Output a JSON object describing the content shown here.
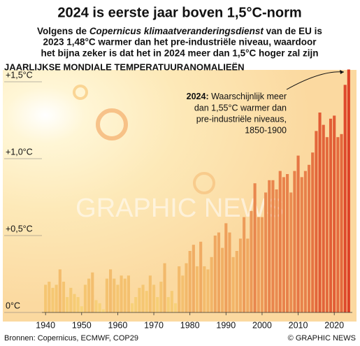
{
  "chart_data": {
    "type": "bar",
    "title": "2024 is eerste jaar boven 1,5°C-norm",
    "subtitle": [
      "Volgens de ",
      "Copernicus klimaatveranderingsdienst",
      " van de EU is",
      "2023 1,48°C warmer dan het pre-industriële niveau, waardoor",
      "het bijna zeker is dat het in 2024 meer dan 1,5°C hoger zal zijn"
    ],
    "y_label": "JAARLIJKSE MONDIALE TEMPERATUURANOMALIEËN",
    "annotation": [
      "2024:",
      " Waarschijnlijk meer",
      "dan 1,55°C warmer dan",
      "pre-industriële niveaus,",
      "1850-1900"
    ],
    "source": "Bronnen: Copernicus, ECMWF, COP29",
    "credit": "© GRAPHIC NEWS",
    "watermark": "GRAPHIC NEWS",
    "x": [
      1940,
      1941,
      1942,
      1943,
      1944,
      1945,
      1946,
      1947,
      1948,
      1949,
      1950,
      1951,
      1952,
      1953,
      1954,
      1955,
      1956,
      1957,
      1958,
      1959,
      1960,
      1961,
      1962,
      1963,
      1964,
      1965,
      1966,
      1967,
      1968,
      1969,
      1970,
      1971,
      1972,
      1973,
      1974,
      1975,
      1976,
      1977,
      1978,
      1979,
      1980,
      1981,
      1982,
      1983,
      1984,
      1985,
      1986,
      1987,
      1988,
      1989,
      1990,
      1991,
      1992,
      1993,
      1994,
      1995,
      1996,
      1997,
      1998,
      1999,
      2000,
      2001,
      2002,
      2003,
      2004,
      2005,
      2006,
      2007,
      2008,
      2009,
      2010,
      2011,
      2012,
      2013,
      2014,
      2015,
      2016,
      2017,
      2018,
      2019,
      2020,
      2021,
      2022,
      2023,
      2024
    ],
    "values": [
      0.18,
      0.2,
      0.16,
      0.18,
      0.28,
      0.2,
      0.1,
      0.16,
      0.12,
      0.1,
      0.04,
      0.18,
      0.22,
      0.26,
      0.08,
      0.06,
      0.02,
      0.22,
      0.28,
      0.22,
      0.18,
      0.24,
      0.22,
      0.24,
      0.06,
      0.1,
      0.16,
      0.18,
      0.14,
      0.24,
      0.18,
      0.1,
      0.2,
      0.32,
      0.1,
      0.14,
      0.06,
      0.3,
      0.24,
      0.32,
      0.4,
      0.44,
      0.3,
      0.46,
      0.3,
      0.28,
      0.36,
      0.5,
      0.52,
      0.42,
      0.58,
      0.52,
      0.36,
      0.4,
      0.48,
      0.62,
      0.48,
      0.66,
      0.84,
      0.62,
      0.62,
      0.78,
      0.86,
      0.86,
      0.8,
      0.92,
      0.88,
      0.9,
      0.78,
      0.92,
      1.02,
      0.88,
      0.92,
      0.96,
      1.04,
      1.18,
      1.3,
      1.22,
      1.14,
      1.26,
      1.28,
      1.14,
      1.16,
      1.48,
      1.58
    ],
    "colors": [
      "#f8d77c",
      "#dc3f25"
    ],
    "xlim": [
      1939,
      2025
    ],
    "xticks": [
      1940,
      1950,
      1960,
      1970,
      1980,
      1990,
      2000,
      2010,
      2020
    ],
    "ylim": [
      0,
      1.6
    ],
    "yticks": [
      {
        "value": 0,
        "label": "0°C"
      },
      {
        "value": 0.5,
        "label": "+0,5°C"
      },
      {
        "value": 1.0,
        "label": "+1,0°C"
      },
      {
        "value": 1.5,
        "label": "+1,5°C"
      }
    ]
  }
}
